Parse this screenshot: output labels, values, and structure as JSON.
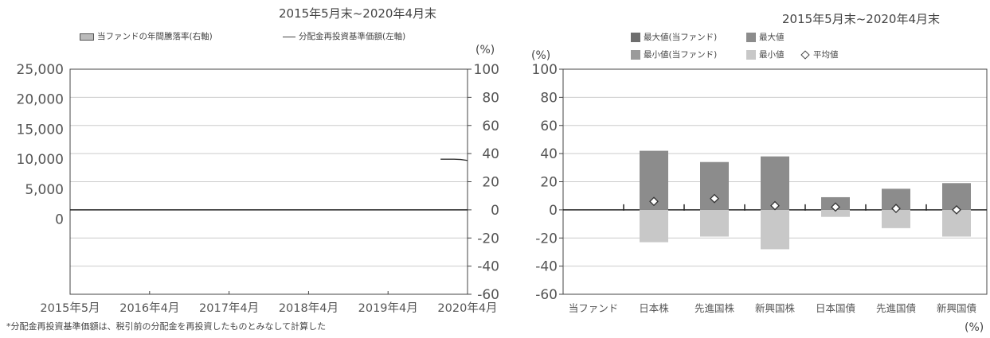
{
  "left_chart": {
    "period": "2015年5月末~2020年4月末",
    "legend": [
      "当ファンドの年間騰落率(右軸)",
      "分配金再投資基準価額(左軸)"
    ],
    "footnote": "*分配金再投資基準価額は、税引前の分配金を再投資したものとみなして計算した",
    "right_unit": "(%)"
  },
  "right_chart": {
    "period": "2015年5月末~2020年4月末",
    "legend": [
      "最大値(当ファンド)",
      "最大値",
      "最小値(当ファンド)",
      "最小値",
      "平均値"
    ],
    "unit_top": "(%)",
    "unit_bottom": "(%)"
  },
  "colors": {
    "max_fund": "#6e6e6e",
    "max": "#8c8c8c",
    "min_fund": "#9a9a9a",
    "min": "#c8c8c8",
    "axis": "#444444",
    "grid": "#cccccc"
  },
  "chart_data": [
    {
      "type": "line",
      "x": [
        "2015年5月",
        "2016年4月",
        "2017年4月",
        "2018年4月",
        "2019年4月",
        "2020年4月"
      ],
      "left_axis": {
        "ylim": [
          -12500,
          25000
        ],
        "ticks": [
          "25,000",
          "20,000",
          "15,000",
          "10,000",
          "5,000",
          "0"
        ]
      },
      "right_axis": {
        "ylim": [
          -60,
          100
        ],
        "ticks": [
          "100",
          "80",
          "60",
          "40",
          "20",
          "0",
          "-20",
          "-40",
          "-60"
        ]
      },
      "series": [
        {
          "points": [
            [
              "2019年12月",
              10000
            ],
            [
              "2020年2月",
              10000
            ],
            [
              "2020年3月",
              9950
            ],
            [
              "2020年4月",
              9800
            ]
          ]
        }
      ],
      "grid": true
    },
    {
      "type": "bar",
      "categories": [
        "当ファンド",
        "日本株",
        "先進国株",
        "新興国株",
        "日本国債",
        "先進国債",
        "新興国債"
      ],
      "ylim": [
        -60,
        100
      ],
      "ticks": [
        "100",
        "80",
        "60",
        "40",
        "20",
        "0",
        "-20",
        "-40",
        "-60"
      ],
      "max": [
        null,
        42,
        34,
        38,
        9,
        15,
        19
      ],
      "min": [
        null,
        -23,
        -19,
        -28,
        -5,
        -13,
        -19
      ],
      "avg": [
        null,
        6,
        8,
        3,
        2,
        1,
        0
      ],
      "grid": true,
      "legend_position": "top"
    }
  ]
}
